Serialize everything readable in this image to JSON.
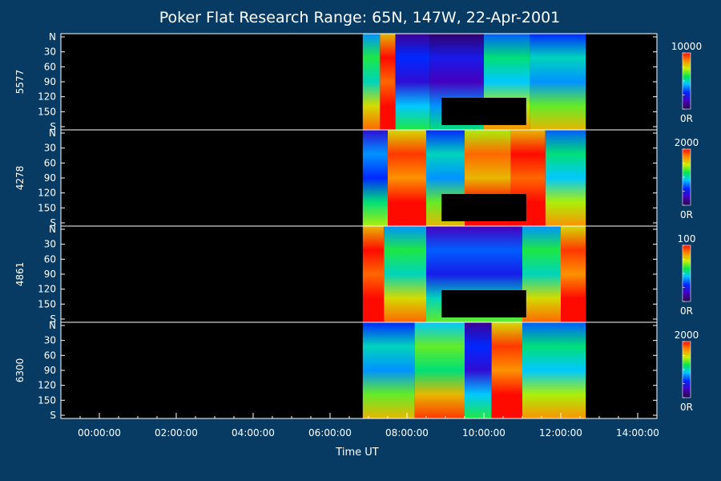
{
  "chart_data": {
    "type": "heatmap",
    "title": "Poker Flat Research Range: 65N, 147W, 22-Apr-2001",
    "xlabel": "Time UT",
    "x_ticks": [
      "00:00:00",
      "02:00:00",
      "04:00:00",
      "06:00:00",
      "08:00:00",
      "10:00:00",
      "12:00:00",
      "14:00:00"
    ],
    "x_range_hours": [
      -1.0,
      14.5
    ],
    "y_tick_labels": [
      "N",
      "30",
      "60",
      "90",
      "120",
      "150",
      "S"
    ],
    "y_range_deg": [
      0,
      180
    ],
    "data_coverage_hours": [
      6.85,
      12.65
    ],
    "panels": [
      {
        "name": "5577",
        "colorbar_max": "10000",
        "colorbar_min": "0R",
        "bands": [
          {
            "t0": 6.85,
            "t1": 7.3,
            "level": 0.55
          },
          {
            "t0": 7.3,
            "t1": 7.7,
            "level": 0.95
          },
          {
            "t0": 7.7,
            "t1": 8.6,
            "level": 0.25
          },
          {
            "t0": 8.6,
            "t1": 10.0,
            "level": 0.2
          },
          {
            "t0": 10.0,
            "t1": 11.2,
            "level": 0.5
          },
          {
            "t0": 11.2,
            "t1": 12.65,
            "level": 0.45
          }
        ],
        "gap": {
          "t0": 8.9,
          "t1": 11.1,
          "lat0": 120,
          "lat1": 180
        }
      },
      {
        "name": "4278",
        "colorbar_max": "2000",
        "colorbar_min": "0R",
        "bands": [
          {
            "t0": 6.85,
            "t1": 7.5,
            "level": 0.35
          },
          {
            "t0": 7.5,
            "t1": 8.5,
            "level": 0.9
          },
          {
            "t0": 8.5,
            "t1": 9.5,
            "level": 0.45
          },
          {
            "t0": 9.5,
            "t1": 10.7,
            "level": 0.85
          },
          {
            "t0": 10.7,
            "t1": 11.6,
            "level": 0.95
          },
          {
            "t0": 11.6,
            "t1": 12.65,
            "level": 0.5
          }
        ],
        "gap": {
          "t0": 8.9,
          "t1": 11.1,
          "lat0": 120,
          "lat1": 180
        }
      },
      {
        "name": "4861",
        "colorbar_max": "100",
        "colorbar_min": "0R",
        "bands": [
          {
            "t0": 6.85,
            "t1": 7.4,
            "level": 0.95
          },
          {
            "t0": 7.4,
            "t1": 8.5,
            "level": 0.55
          },
          {
            "t0": 8.5,
            "t1": 11.0,
            "level": 0.3
          },
          {
            "t0": 11.0,
            "t1": 12.0,
            "level": 0.55
          },
          {
            "t0": 12.0,
            "t1": 12.65,
            "level": 0.9
          }
        ],
        "gap": {
          "t0": 8.9,
          "t1": 11.1,
          "lat0": 120,
          "lat1": 180
        }
      },
      {
        "name": "6300",
        "colorbar_max": "2000",
        "colorbar_min": "0R",
        "bands": [
          {
            "t0": 6.85,
            "t1": 8.2,
            "level": 0.45
          },
          {
            "t0": 8.2,
            "t1": 9.5,
            "level": 0.6
          },
          {
            "t0": 9.5,
            "t1": 10.2,
            "level": 0.25
          },
          {
            "t0": 10.2,
            "t1": 11.0,
            "level": 0.9
          },
          {
            "t0": 11.0,
            "t1": 12.65,
            "level": 0.5
          }
        ],
        "gap": null
      }
    ]
  }
}
